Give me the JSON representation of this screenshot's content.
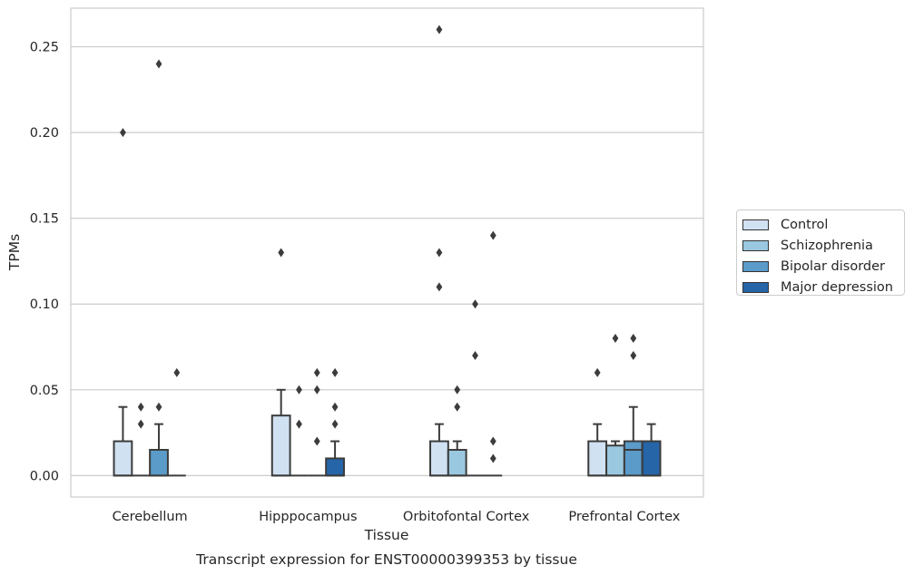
{
  "chart_data": {
    "type": "box",
    "title": "",
    "caption": "Transcript expression for ENST00000399353 by tissue",
    "xlabel": "Tissue",
    "ylabel": "TPMs",
    "ylim": [
      -0.0125,
      0.2725
    ],
    "yticks": [
      0.0,
      0.05,
      0.1,
      0.15,
      0.2,
      0.25
    ],
    "ytick_labels": [
      "0.00",
      "0.05",
      "0.10",
      "0.15",
      "0.20",
      "0.25"
    ],
    "grid": "horizontal",
    "legend_position": "right",
    "categories": [
      "Cerebellum",
      "Hipppocampus",
      "Orbitofontal Cortex",
      "Prefrontal Cortex"
    ],
    "series": [
      {
        "name": "Control",
        "color": "#d0e1f2",
        "boxes": [
          {
            "q1": 0,
            "median": 0,
            "q3": 0.02,
            "whisker_low": 0,
            "whisker_high": 0.04,
            "outliers": [
              0.2
            ]
          },
          {
            "q1": 0,
            "median": 0,
            "q3": 0.035,
            "whisker_low": 0,
            "whisker_high": 0.05,
            "outliers": [
              0.13
            ]
          },
          {
            "q1": 0,
            "median": 0,
            "q3": 0.02,
            "whisker_low": 0,
            "whisker_high": 0.03,
            "outliers": [
              0.26,
              0.13,
              0.11
            ]
          },
          {
            "q1": 0,
            "median": 0,
            "q3": 0.02,
            "whisker_low": 0,
            "whisker_high": 0.03,
            "outliers": [
              0.06
            ]
          }
        ]
      },
      {
        "name": "Schizophrenia",
        "color": "#9ac8e0",
        "boxes": [
          {
            "q1": 0,
            "median": 0,
            "q3": 0,
            "whisker_low": 0,
            "whisker_high": 0,
            "outliers": [
              0.04,
              0.03
            ]
          },
          {
            "q1": 0,
            "median": 0,
            "q3": 0,
            "whisker_low": 0,
            "whisker_high": 0,
            "outliers": [
              0.05,
              0.03
            ]
          },
          {
            "q1": 0,
            "median": 0,
            "q3": 0.015,
            "whisker_low": 0,
            "whisker_high": 0.02,
            "outliers": [
              0.05,
              0.04
            ]
          },
          {
            "q1": 0,
            "median": 0,
            "q3": 0.0175,
            "whisker_low": 0,
            "whisker_high": 0.02,
            "outliers": [
              0.08
            ]
          }
        ]
      },
      {
        "name": "Bipolar disorder",
        "color": "#5a9bc9",
        "boxes": [
          {
            "q1": 0,
            "median": 0,
            "q3": 0.015,
            "whisker_low": 0,
            "whisker_high": 0.03,
            "outliers": [
              0.24,
              0.04
            ]
          },
          {
            "q1": 0,
            "median": 0,
            "q3": 0,
            "whisker_low": 0,
            "whisker_high": 0,
            "outliers": [
              0.06,
              0.05,
              0.02
            ]
          },
          {
            "q1": 0,
            "median": 0,
            "q3": 0,
            "whisker_low": 0,
            "whisker_high": 0,
            "outliers": [
              0.1,
              0.07
            ]
          },
          {
            "q1": 0,
            "median": 0.015,
            "q3": 0.02,
            "whisker_low": 0,
            "whisker_high": 0.04,
            "outliers": [
              0.08,
              0.07
            ]
          }
        ]
      },
      {
        "name": "Major depression",
        "color": "#2565a8",
        "boxes": [
          {
            "q1": 0,
            "median": 0,
            "q3": 0,
            "whisker_low": 0,
            "whisker_high": 0,
            "outliers": [
              0.06
            ]
          },
          {
            "q1": 0,
            "median": 0,
            "q3": 0.01,
            "whisker_low": 0,
            "whisker_high": 0.02,
            "outliers": [
              0.06,
              0.04,
              0.03
            ]
          },
          {
            "q1": 0,
            "median": 0,
            "q3": 0,
            "whisker_low": 0,
            "whisker_high": 0,
            "outliers": [
              0.14,
              0.02,
              0.01
            ]
          },
          {
            "q1": 0,
            "median": 0,
            "q3": 0.02,
            "whisker_low": 0,
            "whisker_high": 0.03,
            "outliers": []
          }
        ]
      }
    ]
  }
}
